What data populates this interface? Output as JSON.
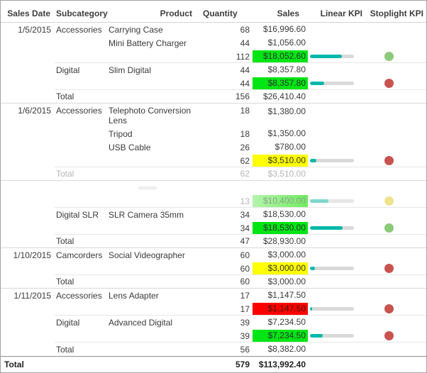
{
  "colors": {
    "highlight_green": "#00e513",
    "highlight_yellow": "#feff00",
    "highlight_red": "#fe0000",
    "highlight_green_faded_start": "#b5f5ad",
    "highlight_green_faded_end": "#6fec5e",
    "kpi_bar_fill": "#01b8aa",
    "kpi_bar_fill_faded": "#7fd6cb",
    "kpi_bar_track": "#d9d9d9",
    "kpi_bar_track_faded": "#e6e6e6",
    "stoplight_green": "#8cc97a",
    "stoplight_red": "#c9534f",
    "stoplight_yellow": "#f0e38e",
    "text_on_red": "#3f1c12",
    "text_on_highlight": "#333333",
    "text_on_faded_green": "#8fa18f"
  },
  "chart_data": {
    "type": "table",
    "columns": [
      {
        "label": "Sales Date"
      },
      {
        "label": "Subcategory"
      },
      {
        "label": "Product"
      },
      {
        "label": "Quantity"
      },
      {
        "label": "Sales"
      },
      {
        "label": "Linear KPI"
      },
      {
        "label": "Stoplight KPI"
      }
    ],
    "rows": [
      {
        "type": "detail",
        "date": "1/5/2015",
        "subcategory": "Accessories",
        "product": "Carrying Case",
        "quantity": "68",
        "sales": "$16,996.60"
      },
      {
        "type": "detail",
        "product": "Mini Battery Charger",
        "quantity": "44",
        "sales": "$1,056.00"
      },
      {
        "type": "subtotal",
        "quantity": "112",
        "sales": "$18,052.60",
        "highlight": "green",
        "linear_kpi_pct": 72,
        "stoplight": "green"
      },
      {
        "type": "detail",
        "subcategory": "Digital",
        "product": "Slim Digital",
        "quantity": "44",
        "sales": "$8,357.80"
      },
      {
        "type": "subtotal",
        "quantity": "44",
        "sales": "$8,357.80",
        "highlight": "green",
        "linear_kpi_pct": 33,
        "stoplight": "red"
      },
      {
        "type": "day-total",
        "subcategory": "Total",
        "quantity": "156",
        "sales": "$26,410.40"
      },
      {
        "type": "detail",
        "wrap": true,
        "date": "1/6/2015",
        "subcategory": "Accessories",
        "product": "Telephoto Conversion Lens",
        "quantity": "18",
        "sales": "$1,380.00"
      },
      {
        "type": "detail",
        "product": "Tripod",
        "quantity": "18",
        "sales": "$1,350.00"
      },
      {
        "type": "detail",
        "product": "USB Cable",
        "quantity": "26",
        "sales": "$780.00"
      },
      {
        "type": "subtotal",
        "quantity": "62",
        "sales": "$3,510.00",
        "highlight": "yellow",
        "linear_kpi_pct": 14,
        "stoplight": "red"
      },
      {
        "type": "day-total",
        "faded": true,
        "subcategory": "Total",
        "quantity": "62",
        "sales": "$3,510.00"
      },
      {
        "type": "spacer"
      },
      {
        "type": "subtotal",
        "faded": true,
        "quantity": "13",
        "sales": "$10,400.00",
        "highlight": "green",
        "linear_kpi_pct": 42,
        "stoplight": "yellow"
      },
      {
        "type": "detail",
        "subcategory": "Digital SLR",
        "product": "SLR Camera 35mm",
        "quantity": "34",
        "sales": "$18,530.00"
      },
      {
        "type": "subtotal",
        "quantity": "34",
        "sales": "$18,530.00",
        "highlight": "green",
        "linear_kpi_pct": 74,
        "stoplight": "green"
      },
      {
        "type": "day-total",
        "subcategory": "Total",
        "quantity": "47",
        "sales": "$28,930.00"
      },
      {
        "type": "detail",
        "date": "1/10/2015",
        "subcategory": "Camcorders",
        "product": "Social Videographer",
        "quantity": "60",
        "sales": "$3,000.00"
      },
      {
        "type": "subtotal",
        "quantity": "60",
        "sales": "$3,000.00",
        "highlight": "yellow",
        "linear_kpi_pct": 12,
        "stoplight": "red"
      },
      {
        "type": "day-total",
        "subcategory": "Total",
        "quantity": "60",
        "sales": "$3,000.00"
      },
      {
        "type": "detail",
        "date": "1/11/2015",
        "subcategory": "Accessories",
        "product": "Lens Adapter",
        "quantity": "17",
        "sales": "$1,147.50"
      },
      {
        "type": "subtotal",
        "quantity": "17",
        "sales": "$1,147.50",
        "highlight": "red",
        "linear_kpi_pct": 5,
        "stoplight": "red"
      },
      {
        "type": "detail",
        "subcategory": "Digital",
        "product": "Advanced Digital",
        "quantity": "39",
        "sales": "$7,234.50"
      },
      {
        "type": "subtotal",
        "quantity": "39",
        "sales": "$7,234.50",
        "highlight": "green",
        "linear_kpi_pct": 29,
        "stoplight": "red"
      },
      {
        "type": "day-total",
        "subcategory": "Total",
        "quantity": "56",
        "sales": "$8,382.00"
      },
      {
        "type": "grand-total",
        "label": "Total",
        "quantity": "579",
        "sales": "$113,992.40"
      }
    ]
  }
}
